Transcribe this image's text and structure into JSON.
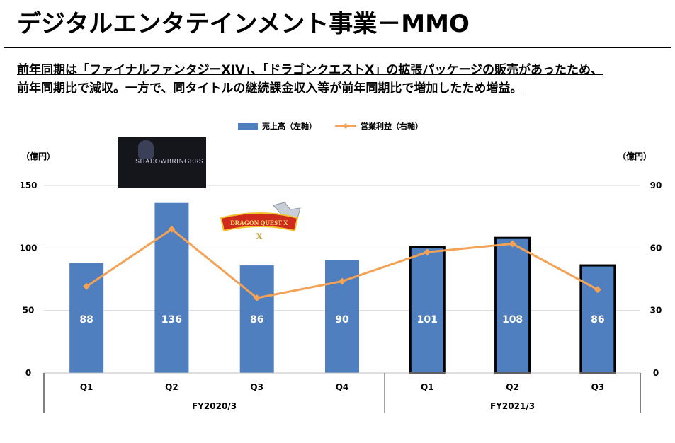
{
  "page": {
    "title": "デジタルエンタテインメント事業－MMO",
    "summary_line1": "前年同期は「ファイナルファンタジーXIV」、「ドラゴンクエストX」の拡張パッケージの販売があったため、",
    "summary_line2": "前年同期比で減収。一方で、同タイトルの継続課金収入等が前年同期比で増加したため増益。"
  },
  "logos": {
    "ff14": {
      "name": "shadowbringers-logo",
      "text": "SHADOWBRINGERS"
    },
    "dq10": {
      "name": "dragon-quest-x-logo",
      "text": "DRAGON QUEST X"
    }
  },
  "colors": {
    "bar": "#4f7fbf",
    "line": "#f4a256",
    "bar_outline": "#000000",
    "axis": "#bfbfbf"
  },
  "chart_data": {
    "type": "bar",
    "legend": {
      "position": "top-center",
      "bar_label": "売上高（左軸）",
      "line_label": "営業利益（右軸）"
    },
    "left_axis": {
      "unit": "（億円）",
      "range": [
        0,
        150
      ],
      "ticks": [
        0,
        50,
        100,
        150
      ]
    },
    "right_axis": {
      "unit": "（億円）",
      "range": [
        0,
        90
      ],
      "ticks": [
        0,
        30,
        60,
        90
      ]
    },
    "categories": [
      "Q1",
      "Q2",
      "Q3",
      "Q4",
      "Q1",
      "Q2",
      "Q3"
    ],
    "groups": [
      {
        "label": "FY2020/3",
        "count": 4
      },
      {
        "label": "FY2021/3",
        "count": 3
      }
    ],
    "series": [
      {
        "name": "売上高（左軸）",
        "type": "bar",
        "axis": "left",
        "values": [
          88,
          136,
          86,
          90,
          101,
          108,
          86
        ],
        "outlined": [
          false,
          false,
          false,
          false,
          true,
          true,
          true
        ]
      },
      {
        "name": "営業利益（右軸）",
        "type": "line",
        "axis": "right",
        "values": [
          41.5,
          69,
          36,
          44,
          58,
          62,
          40
        ]
      }
    ],
    "data_labels": [
      "88",
      "136",
      "86",
      "90",
      "101",
      "108",
      "86"
    ],
    "grid": true
  }
}
